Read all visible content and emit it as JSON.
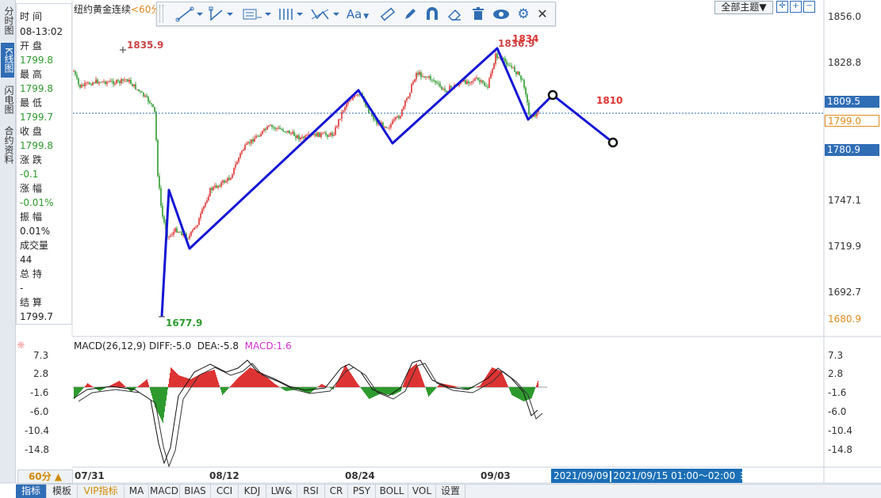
{
  "nav_tabs": [
    "分时图",
    "K线图",
    "闪电图",
    "合约资料"
  ],
  "chart_title": "纽约黄金连续",
  "period_tag": "<60分",
  "info": [
    {
      "label": "时 间",
      "value": "08-13:02"
    },
    {
      "label": "开 盘",
      "value": "1799.8"
    },
    {
      "label": "最 高",
      "value": "1799.8"
    },
    {
      "label": "最 低",
      "value": "1799.7"
    },
    {
      "label": "收 盘",
      "value": "1799.8"
    },
    {
      "label": "涨 跌",
      "value": "-0.1"
    },
    {
      "label": "涨 幅",
      "value": "-0.01%"
    },
    {
      "label": "振 幅",
      "value": "0.01%"
    },
    {
      "label": "成交量",
      "value": "44"
    },
    {
      "label": "总 持",
      "value": "-"
    },
    {
      "label": "结 算",
      "value": "1799.7"
    }
  ],
  "theme_label": "全部主题▼",
  "toolbar_icons": [
    "line-tool-icon",
    "polyline-tool-icon",
    "fib-tool-icon",
    "channel-tool-icon",
    "pattern-tool-icon",
    "text-tool-icon",
    "ruler-icon",
    "pen-icon",
    "magnet-icon",
    "eraser-icon",
    "trash-icon",
    "eye-icon",
    "gear-icon",
    "close-icon"
  ],
  "text_tool_label": "Aa",
  "price_axis": [
    "1856.0",
    "1828.8",
    "1809.5",
    "1799.0",
    "1780.9",
    "1747.1",
    "1719.9",
    "1692.7",
    "1680.9"
  ],
  "macd_axis": [
    "7.3",
    "2.8",
    "-1.6",
    "-6.0",
    "-10.4",
    "-14.8"
  ],
  "annotations": {
    "high_left": "1835.9",
    "high_right": "1836.9",
    "mark_1834": "1834",
    "low": "1677.9",
    "target": "1810"
  },
  "macd_header": {
    "name": "MACD(26,12,9)",
    "diff": "DIFF:-5.0",
    "dea": "DEA:-5.8",
    "macd": "MACD:1.6"
  },
  "dates": [
    "07/31",
    "08/12",
    "08/24",
    "09/03"
  ],
  "period_button": "60分 ▲",
  "date_range": {
    "start": "2021/09/09",
    "range": "2021/09/15 01:00～02:00"
  },
  "bottom_tabs": [
    "指标",
    "模板",
    "VIP指标",
    "MA",
    "MACD",
    "BIAS",
    "CCI",
    "KDJ",
    "LW&",
    "RSI",
    "CR",
    "PSY",
    "BOLL",
    "VOL",
    "设置"
  ],
  "colors": {
    "up": "#d33",
    "down": "#2e9a2e",
    "drawing": "#1515d6",
    "accent": "#2f6db5",
    "close_tag": "#e08a1e"
  }
}
